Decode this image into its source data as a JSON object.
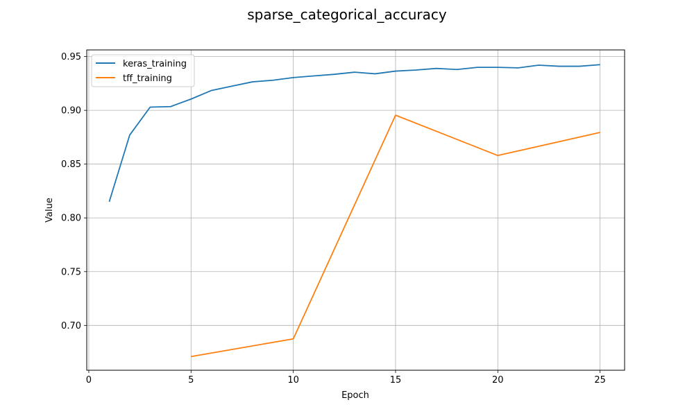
{
  "chart_data": {
    "type": "line",
    "title": "sparse_categorical_accuracy",
    "xlabel": "Epoch",
    "ylabel": "Value",
    "xlim": [
      -0.1,
      26.2
    ],
    "ylim": [
      0.6583,
      0.9562
    ],
    "xticks": [
      0,
      5,
      10,
      15,
      20,
      25
    ],
    "yticks": [
      0.7,
      0.75,
      0.8,
      0.85,
      0.9,
      0.95
    ],
    "xtick_labels": [
      "0",
      "5",
      "10",
      "15",
      "20",
      "25"
    ],
    "ytick_labels": [
      "0.70",
      "0.75",
      "0.80",
      "0.85",
      "0.90",
      "0.95"
    ],
    "grid": true,
    "legend_position": "top-left",
    "series": [
      {
        "name": "keras_training",
        "color": "#1f77b4",
        "x": [
          1,
          2,
          3,
          4,
          5,
          6,
          7,
          8,
          9,
          10,
          11,
          12,
          13,
          14,
          15,
          16,
          17,
          18,
          19,
          20,
          21,
          22,
          23,
          24,
          25
        ],
        "y": [
          0.815,
          0.877,
          0.903,
          0.9035,
          0.9105,
          0.9185,
          0.9225,
          0.9265,
          0.928,
          0.9305,
          0.932,
          0.9335,
          0.9355,
          0.934,
          0.9365,
          0.9375,
          0.939,
          0.938,
          0.94,
          0.94,
          0.9395,
          0.942,
          0.941,
          0.941,
          0.9425
        ]
      },
      {
        "name": "tff_training",
        "color": "#ff7f0e",
        "x": [
          5,
          10,
          15,
          20,
          25
        ],
        "y": [
          0.671,
          0.6875,
          0.8955,
          0.858,
          0.8795
        ]
      }
    ]
  }
}
